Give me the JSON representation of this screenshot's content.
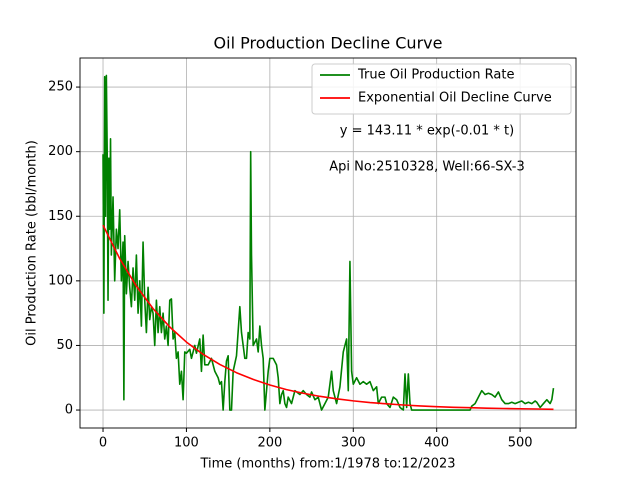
{
  "chart_data": {
    "type": "line",
    "title": "Oil Production Decline Curve",
    "xlabel": "Time (months) from:1/1978 to:12/2023",
    "ylabel": "Oil Production Rate (bbl/month)",
    "annotations": [
      "y = 143.11 * exp(-0.01 * t)",
      "Api No:2510328, Well:66-SX-3"
    ],
    "xlim": [
      -27.6,
      567
    ],
    "ylim": [
      -13.9,
      272.5
    ],
    "xticks": [
      0,
      100,
      200,
      300,
      400,
      500
    ],
    "yticks": [
      0,
      50,
      100,
      150,
      200,
      250
    ],
    "grid": true,
    "legend": "upper right",
    "series": [
      {
        "name": "True Oil Production Rate",
        "color": "#008000",
        "x": [
          0,
          1,
          2,
          3,
          4,
          5,
          6,
          7,
          8,
          9,
          10,
          12,
          14,
          16,
          18,
          20,
          22,
          24,
          25,
          26,
          28,
          30,
          32,
          34,
          36,
          38,
          40,
          42,
          44,
          46,
          48,
          50,
          52,
          54,
          56,
          58,
          60,
          62,
          64,
          66,
          68,
          70,
          72,
          74,
          76,
          78,
          80,
          82,
          84,
          86,
          88,
          90,
          92,
          94,
          96,
          98,
          100,
          104,
          106,
          110,
          112,
          116,
          118,
          120,
          122,
          126,
          130,
          134,
          138,
          140,
          142,
          144,
          146,
          148,
          150,
          152,
          154,
          156,
          160,
          164,
          166,
          168,
          170,
          172,
          174,
          176,
          177,
          178,
          180,
          184,
          186,
          188,
          190,
          192,
          194,
          196,
          198,
          200,
          204,
          208,
          210,
          212,
          214,
          216,
          218,
          220,
          222,
          226,
          230,
          236,
          240,
          244,
          248,
          250,
          254,
          258,
          262,
          266,
          270,
          274,
          276,
          280,
          284,
          288,
          290,
          292,
          294,
          296,
          298,
          300,
          304,
          308,
          312,
          316,
          320,
          324,
          328,
          330,
          334,
          338,
          340,
          344,
          348,
          352,
          356,
          360,
          362,
          364,
          366,
          368,
          370,
          380,
          400,
          420,
          440,
          442,
          446,
          450,
          454,
          458,
          462,
          466,
          470,
          474,
          478,
          482,
          486,
          490,
          494,
          498,
          502,
          506,
          510,
          514,
          518,
          520,
          524,
          528,
          532,
          536,
          538,
          540
        ],
        "values": [
          198,
          75,
          258,
          150,
          259,
          200,
          85,
          195,
          140,
          210,
          120,
          165,
          100,
          140,
          125,
          155,
          100,
          130,
          8,
          135,
          90,
          115,
          95,
          80,
          110,
          85,
          120,
          75,
          100,
          65,
          130,
          85,
          60,
          95,
          70,
          80,
          75,
          50,
          85,
          60,
          80,
          60,
          75,
          55,
          65,
          50,
          85,
          86,
          55,
          60,
          40,
          45,
          20,
          30,
          8,
          45,
          44,
          47,
          40,
          50,
          44,
          55,
          30,
          58,
          35,
          35,
          40,
          30,
          25,
          20,
          22,
          0,
          22,
          38,
          42,
          0,
          0,
          30,
          42,
          80,
          60,
          50,
          40,
          40,
          60,
          55,
          200,
          120,
          50,
          55,
          45,
          65,
          50,
          40,
          0,
          15,
          30,
          40,
          40,
          35,
          25,
          5,
          12,
          15,
          5,
          2,
          10,
          5,
          15,
          12,
          15,
          12,
          10,
          14,
          8,
          10,
          0,
          5,
          10,
          30,
          15,
          5,
          18,
          45,
          50,
          55,
          15,
          115,
          30,
          20,
          25,
          20,
          22,
          20,
          22,
          15,
          18,
          5,
          10,
          10,
          5,
          2,
          10,
          8,
          2,
          0,
          28,
          2,
          28,
          5,
          0,
          0,
          0,
          0,
          0,
          3,
          5,
          10,
          15,
          12,
          13,
          12,
          10,
          14,
          8,
          5,
          5,
          6,
          5,
          6,
          7,
          5,
          6,
          5,
          7,
          6,
          2,
          5,
          8,
          5,
          8,
          17
        ]
      },
      {
        "name": "Exponential Oil Decline Curve",
        "color": "#ff0000",
        "x": [
          0,
          20,
          40,
          60,
          80,
          100,
          120,
          140,
          160,
          180,
          200,
          220,
          240,
          260,
          280,
          300,
          320,
          340,
          360,
          380,
          400,
          420,
          440,
          460,
          480,
          500,
          520,
          540
        ],
        "values": [
          143.1,
          117.2,
          95.9,
          78.5,
          64.3,
          52.6,
          43.1,
          35.3,
          28.9,
          23.7,
          19.4,
          15.8,
          13.0,
          10.6,
          8.7,
          7.1,
          5.8,
          4.8,
          3.9,
          3.2,
          2.6,
          2.1,
          1.8,
          1.4,
          1.2,
          1.0,
          0.8,
          0.6
        ]
      }
    ]
  }
}
